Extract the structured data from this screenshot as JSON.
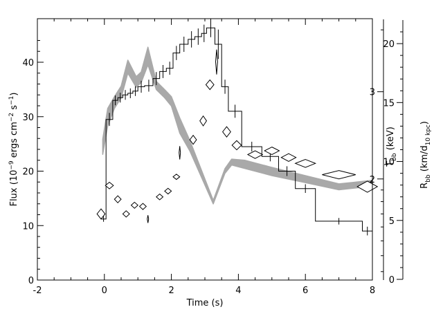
{
  "chart_data": {
    "type": "line",
    "title": "",
    "xlabel": "Time (s)",
    "xlim": [
      -2,
      8
    ],
    "x_ticks": [
      -2,
      0,
      2,
      4,
      6,
      8
    ],
    "grid": false,
    "legend": "none",
    "axes": {
      "flux": {
        "label_pre": "Flux (10",
        "label_exp1": "−9",
        "label_mid1": " ergs cm",
        "label_exp2": "−2",
        "label_mid2": " s",
        "label_exp3": "−1",
        "label_post": ")",
        "range": [
          0,
          48
        ],
        "ticks": [
          0,
          10,
          20,
          30,
          40
        ]
      },
      "temperature": {
        "label_main": "T",
        "label_sub": "bb",
        "label_rest": " (keV)",
        "scale": "log",
        "range": [
          1.25,
          4.2
        ],
        "ticks": [
          2,
          3
        ]
      },
      "radius": {
        "label_main": "R",
        "label_sub": "bb",
        "label_mid": " (km/d",
        "label_sub2": "10 kpc",
        "label_post": ")",
        "range": [
          0,
          22
        ],
        "ticks": [
          0,
          5,
          10,
          15,
          20
        ]
      }
    },
    "series": [
      {
        "style": "step",
        "axis": "flux",
        "color": "#000000",
        "bins": [
          {
            "x0": -0.1,
            "x1": 0.05,
            "y": 11.2,
            "err": 0.5
          },
          {
            "x0": 0.05,
            "x1": 0.25,
            "y": 29.5,
            "err": 1.2
          },
          {
            "x0": 0.25,
            "x1": 0.4,
            "y": 33.0,
            "err": 0.9
          },
          {
            "x0": 0.4,
            "x1": 0.55,
            "y": 33.5,
            "err": 0.9
          },
          {
            "x0": 0.55,
            "x1": 0.7,
            "y": 34.0,
            "err": 0.9
          },
          {
            "x0": 0.7,
            "x1": 0.85,
            "y": 34.3,
            "err": 0.9
          },
          {
            "x0": 0.85,
            "x1": 1.0,
            "y": 34.7,
            "err": 0.9
          },
          {
            "x0": 1.0,
            "x1": 1.2,
            "y": 35.5,
            "err": 1.1
          },
          {
            "x0": 1.2,
            "x1": 1.45,
            "y": 35.7,
            "err": 1.1
          },
          {
            "x0": 1.45,
            "x1": 1.65,
            "y": 37.0,
            "err": 1.2
          },
          {
            "x0": 1.65,
            "x1": 1.85,
            "y": 38.3,
            "err": 1.2
          },
          {
            "x0": 1.85,
            "x1": 2.05,
            "y": 38.9,
            "err": 1.2
          },
          {
            "x0": 2.05,
            "x1": 2.25,
            "y": 41.7,
            "err": 1.3
          },
          {
            "x0": 2.25,
            "x1": 2.5,
            "y": 43.3,
            "err": 1.4
          },
          {
            "x0": 2.5,
            "x1": 2.7,
            "y": 44.2,
            "err": 1.5
          },
          {
            "x0": 2.7,
            "x1": 2.9,
            "y": 44.7,
            "err": 1.5
          },
          {
            "x0": 2.9,
            "x1": 3.05,
            "y": 45.3,
            "err": 1.6
          },
          {
            "x0": 3.05,
            "x1": 3.3,
            "y": 46.3,
            "err": 1.7
          },
          {
            "x0": 3.3,
            "x1": 3.5,
            "y": 43.3,
            "err": 2.7
          },
          {
            "x0": 3.5,
            "x1": 3.7,
            "y": 35.5,
            "err": 1.3
          },
          {
            "x0": 3.7,
            "x1": 4.1,
            "y": 31.0,
            "err": 1.2
          },
          {
            "x0": 4.1,
            "x1": 4.7,
            "y": 24.5,
            "err": 0.9
          },
          {
            "x0": 4.7,
            "x1": 5.2,
            "y": 22.7,
            "err": 0.9
          },
          {
            "x0": 5.2,
            "x1": 5.7,
            "y": 20.0,
            "err": 0.9
          },
          {
            "x0": 5.7,
            "x1": 6.3,
            "y": 16.8,
            "err": 0.8
          },
          {
            "x0": 6.3,
            "x1": 7.7,
            "y": 10.8,
            "err": 0.6
          },
          {
            "x0": 7.7,
            "x1": 8.0,
            "y": 9.0,
            "err": 0.8
          }
        ]
      },
      {
        "style": "band",
        "axis": "radius",
        "color": "#a9a9a9",
        "points": [
          {
            "x": -0.05,
            "lo": 10.6,
            "hi": 11.9
          },
          {
            "x": 0.1,
            "lo": 13.0,
            "hi": 14.5
          },
          {
            "x": 0.3,
            "lo": 14.5,
            "hi": 15.5
          },
          {
            "x": 0.5,
            "lo": 15.4,
            "hi": 16.4
          },
          {
            "x": 0.7,
            "lo": 17.5,
            "hi": 18.6
          },
          {
            "x": 0.95,
            "lo": 16.3,
            "hi": 17.2
          },
          {
            "x": 1.1,
            "lo": 16.7,
            "hi": 17.6
          },
          {
            "x": 1.3,
            "lo": 18.2,
            "hi": 19.7
          },
          {
            "x": 1.55,
            "lo": 16.1,
            "hi": 16.8
          },
          {
            "x": 1.8,
            "lo": 15.4,
            "hi": 16.1
          },
          {
            "x": 2.0,
            "lo": 14.7,
            "hi": 15.5
          },
          {
            "x": 2.25,
            "lo": 12.4,
            "hi": 13.7
          },
          {
            "x": 2.55,
            "lo": 10.9,
            "hi": 11.8
          },
          {
            "x": 3.25,
            "lo": 6.4,
            "hi": 6.7
          },
          {
            "x": 3.6,
            "lo": 9.0,
            "hi": 9.4
          },
          {
            "x": 3.8,
            "lo": 9.7,
            "hi": 10.2
          },
          {
            "x": 4.2,
            "lo": 9.4,
            "hi": 10.1
          },
          {
            "x": 5.0,
            "lo": 8.8,
            "hi": 9.5
          },
          {
            "x": 6.0,
            "lo": 8.2,
            "hi": 8.8
          },
          {
            "x": 7.0,
            "lo": 7.6,
            "hi": 8.1
          },
          {
            "x": 8.0,
            "lo": 7.9,
            "hi": 8.4
          }
        ]
      },
      {
        "style": "diamonds",
        "axis": "temperature",
        "color": "#000000",
        "points": [
          {
            "x": -0.1,
            "y": 1.7,
            "xerr": 0.12,
            "yerr": 0.04
          },
          {
            "x": 0.15,
            "y": 1.94,
            "xerr": 0.12,
            "yerr": 0.03
          },
          {
            "x": 0.4,
            "y": 1.82,
            "xerr": 0.1,
            "yerr": 0.03
          },
          {
            "x": 0.65,
            "y": 1.7,
            "xerr": 0.1,
            "yerr": 0.025
          },
          {
            "x": 0.9,
            "y": 1.77,
            "xerr": 0.1,
            "yerr": 0.025
          },
          {
            "x": 1.15,
            "y": 1.76,
            "xerr": 0.1,
            "yerr": 0.025
          },
          {
            "x": 1.3,
            "y": 1.66,
            "xerr": 0.02,
            "yerr": 0.03
          },
          {
            "x": 1.65,
            "y": 1.84,
            "xerr": 0.1,
            "yerr": 0.025
          },
          {
            "x": 1.9,
            "y": 1.89,
            "xerr": 0.1,
            "yerr": 0.025
          },
          {
            "x": 2.15,
            "y": 2.02,
            "xerr": 0.1,
            "yerr": 0.025
          },
          {
            "x": 2.25,
            "y": 2.26,
            "xerr": 0.01,
            "yerr": 0.07
          },
          {
            "x": 2.65,
            "y": 2.4,
            "xerr": 0.1,
            "yerr": 0.05
          },
          {
            "x": 2.95,
            "y": 2.62,
            "xerr": 0.1,
            "yerr": 0.06
          },
          {
            "x": 3.15,
            "y": 3.1,
            "xerr": 0.12,
            "yerr": 0.07
          },
          {
            "x": 3.35,
            "y": 3.45,
            "xerr": 0.03,
            "yerr": 0.2
          },
          {
            "x": 3.65,
            "y": 2.49,
            "xerr": 0.12,
            "yerr": 0.06
          },
          {
            "x": 3.95,
            "y": 2.34,
            "xerr": 0.14,
            "yerr": 0.05
          },
          {
            "x": 4.5,
            "y": 2.24,
            "xerr": 0.22,
            "yerr": 0.04
          },
          {
            "x": 5.0,
            "y": 2.28,
            "xerr": 0.22,
            "yerr": 0.04
          },
          {
            "x": 5.5,
            "y": 2.21,
            "xerr": 0.22,
            "yerr": 0.04
          },
          {
            "x": 6.0,
            "y": 2.15,
            "xerr": 0.3,
            "yerr": 0.04
          },
          {
            "x": 7.0,
            "y": 2.04,
            "xerr": 0.5,
            "yerr": 0.04
          },
          {
            "x": 7.85,
            "y": 1.93,
            "xerr": 0.3,
            "yerr": 0.05
          }
        ]
      }
    ]
  }
}
